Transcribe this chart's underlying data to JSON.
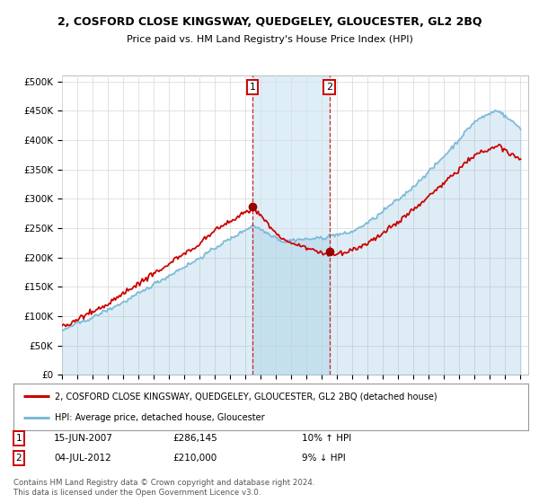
{
  "title": "2, COSFORD CLOSE KINGSWAY, QUEDGELEY, GLOUCESTER, GL2 2BQ",
  "subtitle": "Price paid vs. HM Land Registry's House Price Index (HPI)",
  "legend_line1": "2, COSFORD CLOSE KINGSWAY, QUEDGELEY, GLOUCESTER, GL2 2BQ (detached house)",
  "legend_line2": "HPI: Average price, detached house, Gloucester",
  "footer1": "Contains HM Land Registry data © Crown copyright and database right 2024.",
  "footer2": "This data is licensed under the Open Government Licence v3.0.",
  "sale1_date": "15-JUN-2007",
  "sale1_price": "£286,145",
  "sale1_hpi": "10% ↑ HPI",
  "sale2_date": "04-JUL-2012",
  "sale2_price": "£210,000",
  "sale2_hpi": "9% ↓ HPI",
  "sale1_x": 2007.45,
  "sale2_x": 2012.5,
  "sale1_y": 286145,
  "sale2_y": 210000,
  "hpi_line_color": "#7db9d8",
  "price_color": "#cc0000",
  "shade_color": "#ddeef8",
  "ylim_min": 0,
  "ylim_max": 510000,
  "yticks": [
    0,
    50000,
    100000,
    150000,
    200000,
    250000,
    300000,
    350000,
    400000,
    450000,
    500000
  ],
  "grid_color": "#dddddd",
  "background_color": "#ffffff",
  "xmin": 1995,
  "xmax": 2025.5
}
